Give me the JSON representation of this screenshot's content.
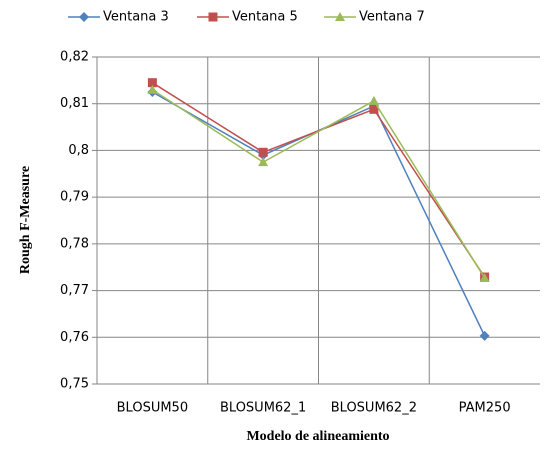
{
  "chart_data": {
    "type": "line",
    "x_label": "Modelo de alineamiento",
    "y_label": "Rough F-Measure",
    "categories": [
      "BLOSUM50",
      "BLOSUM62_1",
      "BLOSUM62_2",
      "PAM250"
    ],
    "series": [
      {
        "name": "Ventana 3",
        "color": "#4f81bd",
        "marker": "diamond",
        "values": [
          0.8125,
          0.799,
          0.8095,
          0.7603
        ]
      },
      {
        "name": "Ventana 5",
        "color": "#c0504d",
        "marker": "square",
        "values": [
          0.8145,
          0.7996,
          0.8088,
          0.7729
        ]
      },
      {
        "name": "Ventana 7",
        "color": "#9bbb59",
        "marker": "triangle",
        "values": [
          0.813,
          0.7975,
          0.8106,
          0.7727
        ]
      }
    ],
    "ylim": [
      0.75,
      0.82
    ],
    "yticks": [
      {
        "value": 0.75,
        "label": "0,75"
      },
      {
        "value": 0.76,
        "label": "0,76"
      },
      {
        "value": 0.77,
        "label": "0,77"
      },
      {
        "value": 0.78,
        "label": "0,78"
      },
      {
        "value": 0.79,
        "label": "0,79"
      },
      {
        "value": 0.8,
        "label": "0,8"
      },
      {
        "value": 0.81,
        "label": "0,81"
      },
      {
        "value": 0.82,
        "label": "0,82"
      }
    ],
    "grid": true,
    "legend": "top"
  }
}
